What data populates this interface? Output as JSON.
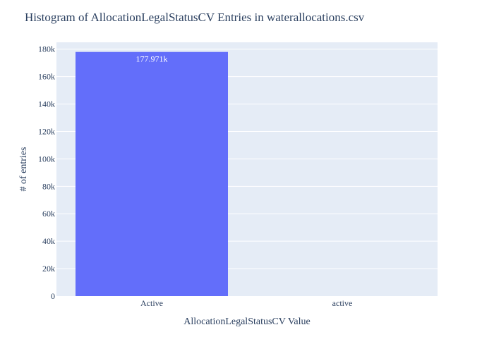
{
  "chart_data": {
    "type": "bar",
    "title": "Histogram of AllocationLegalStatusCV Entries in waterallocations.csv",
    "xlabel": "AllocationLegalStatusCV Value",
    "ylabel": "# of entries",
    "categories": [
      "Active",
      "active"
    ],
    "values": [
      177971,
      0
    ],
    "data_labels": [
      "177.971k",
      ""
    ],
    "ylim": [
      0,
      185000
    ],
    "y_ticks": [
      0,
      20000,
      40000,
      60000,
      80000,
      100000,
      120000,
      140000,
      160000,
      180000
    ],
    "y_tick_labels": [
      "0",
      "20k",
      "40k",
      "60k",
      "80k",
      "100k",
      "120k",
      "140k",
      "160k",
      "180k"
    ],
    "grid": true,
    "legend": "none",
    "colors": {
      "bar": "#636efa",
      "plot_bg": "#e5ecf6",
      "grid": "#ffffff",
      "text": "#2a3f5f",
      "label_inside": "#ffffff"
    }
  }
}
